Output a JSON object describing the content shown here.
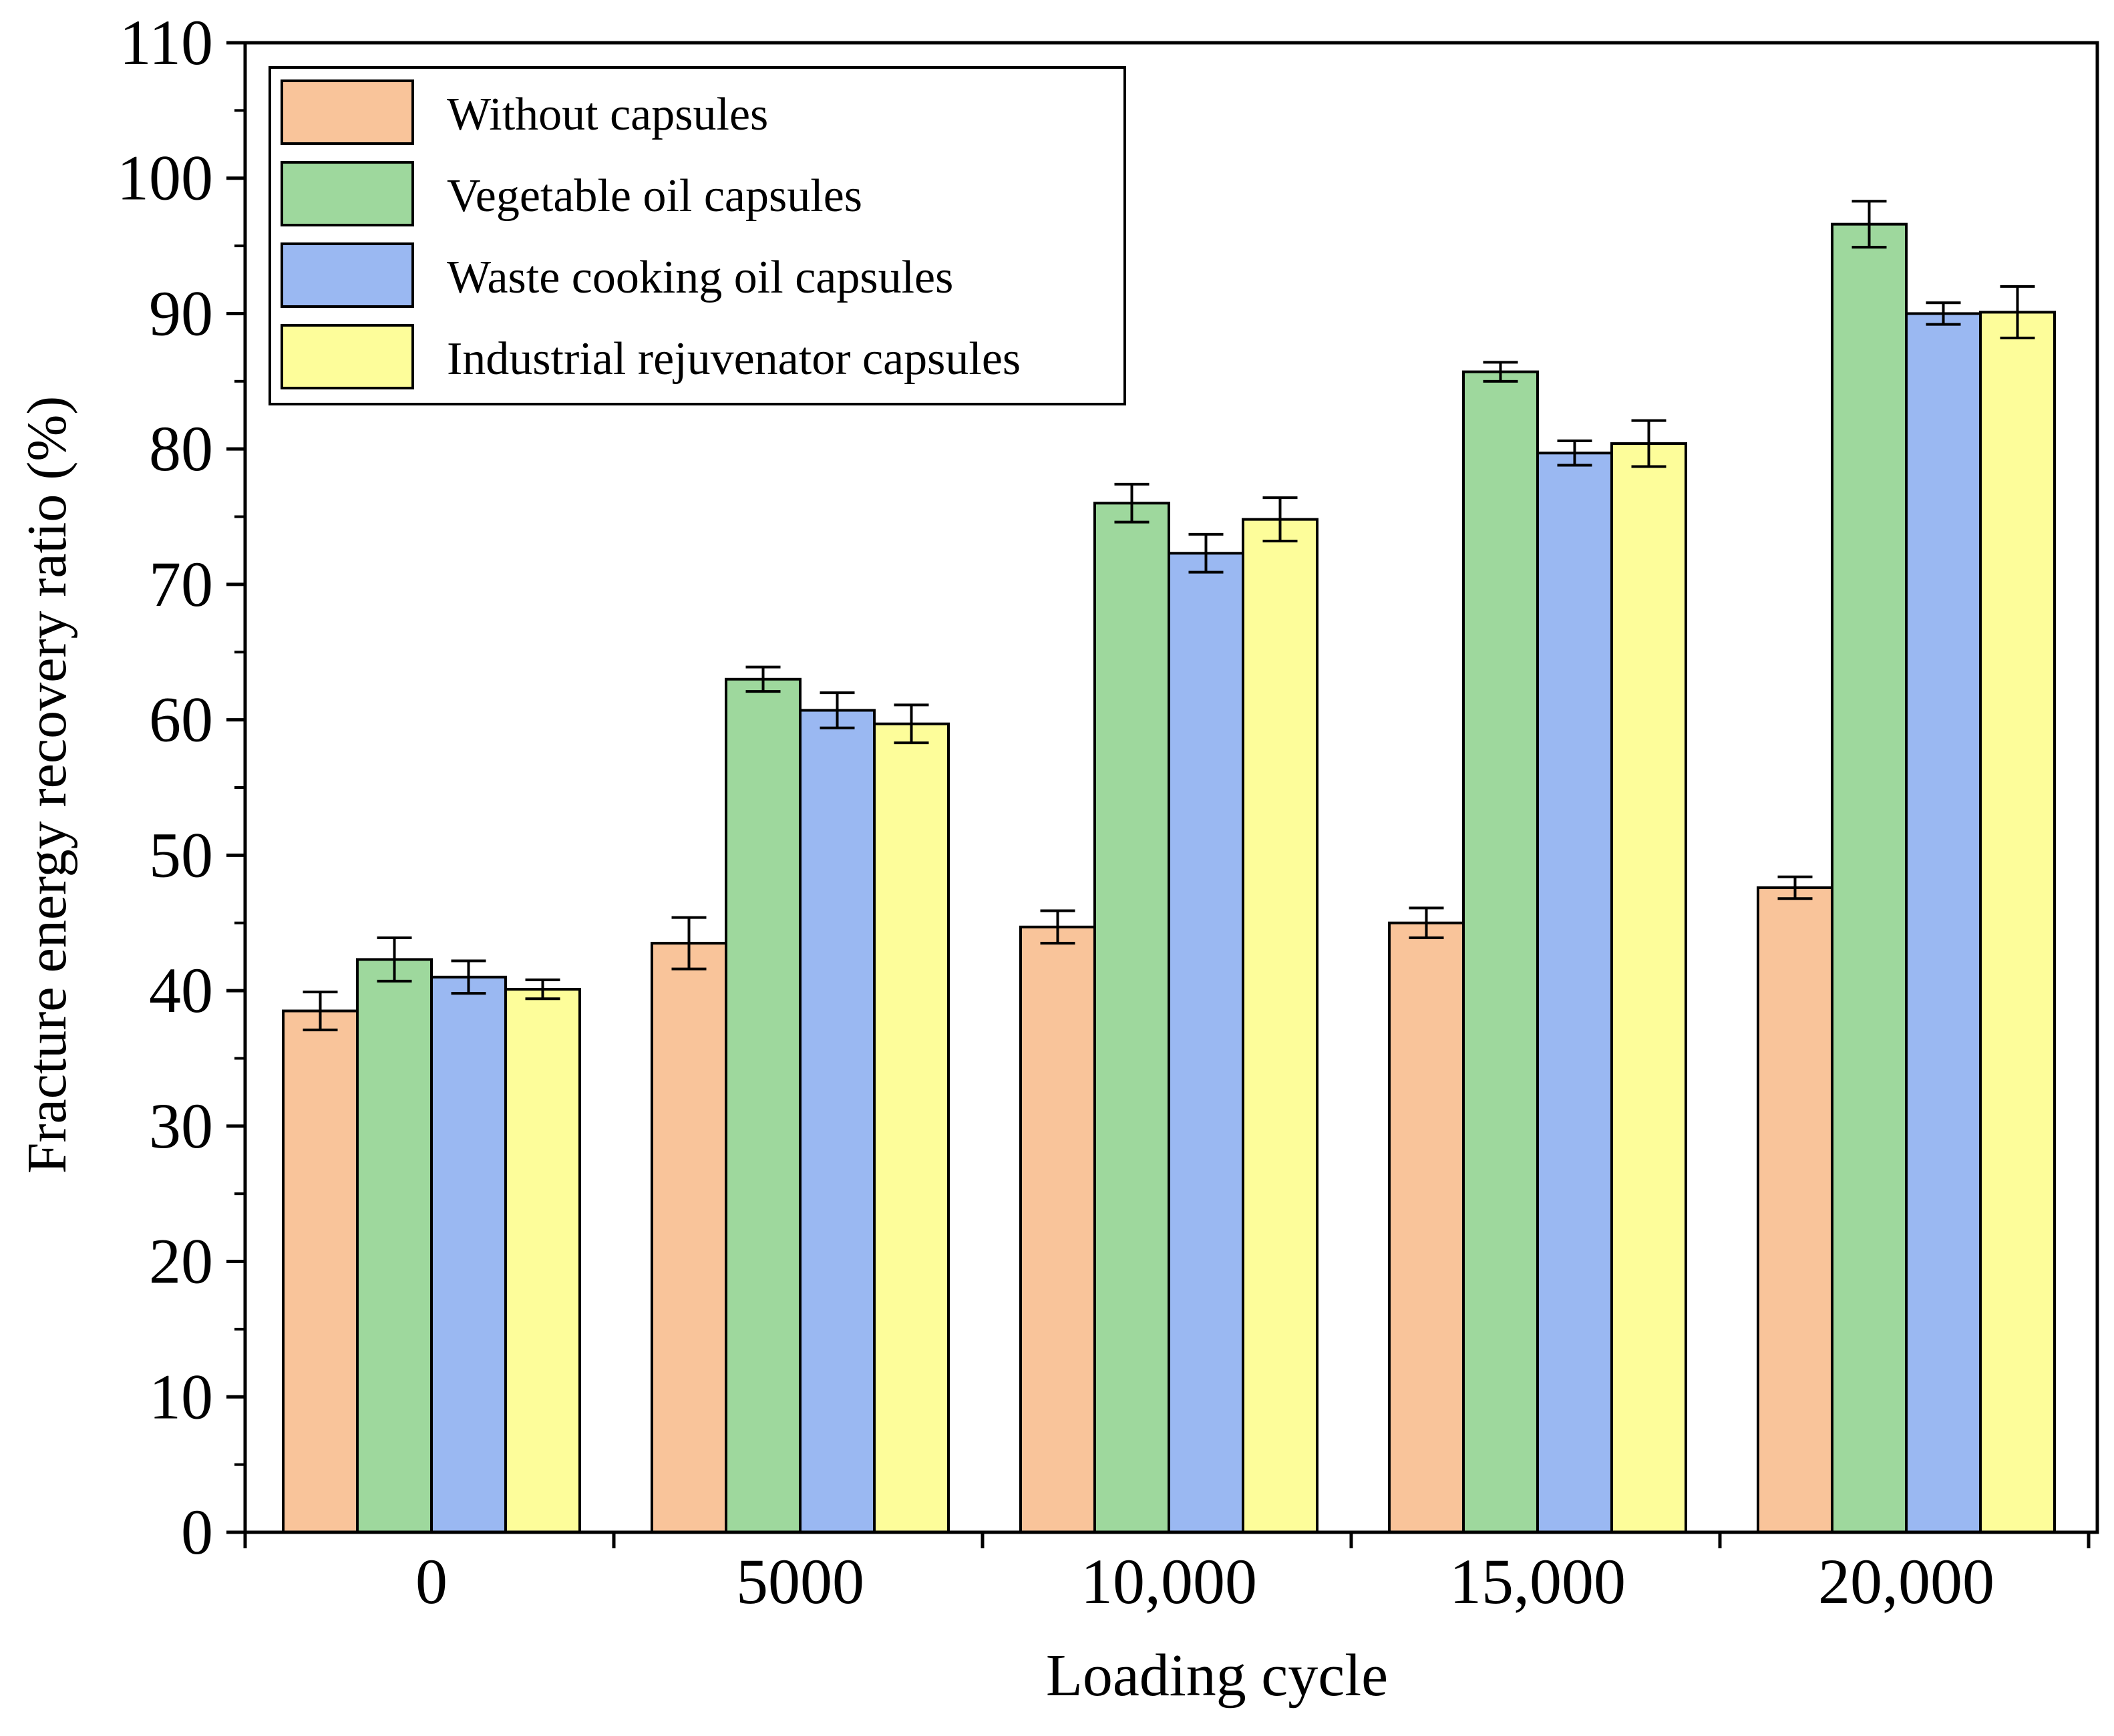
{
  "chart_data": {
    "type": "bar",
    "title": "",
    "xlabel": "Loading cycle",
    "ylabel": "Fracture energy recovery ratio (%)",
    "ylim": [
      0,
      110
    ],
    "yticks": [
      0,
      10,
      20,
      30,
      40,
      50,
      60,
      70,
      80,
      90,
      100,
      110
    ],
    "categories": [
      "0",
      "5000",
      "10,000",
      "15,000",
      "20,000"
    ],
    "legend_position": "top-left",
    "series": [
      {
        "name": "Without capsules",
        "color": "#F9C49A",
        "values": [
          38.5,
          43.5,
          44.7,
          45.0,
          47.6
        ],
        "errors": [
          1.4,
          1.9,
          1.2,
          1.1,
          0.8
        ]
      },
      {
        "name": "Vegetable oil capsules",
        "color": "#9ED89D",
        "values": [
          42.3,
          63.0,
          76.0,
          85.7,
          96.6
        ],
        "errors": [
          1.6,
          0.9,
          1.4,
          0.7,
          1.7
        ]
      },
      {
        "name": "Waste cooking oil capsules",
        "color": "#9AB8F2",
        "values": [
          41.0,
          60.7,
          72.3,
          79.7,
          90.0
        ],
        "errors": [
          1.2,
          1.3,
          1.4,
          0.9,
          0.8
        ]
      },
      {
        "name": "Industrial rejuvenator capsules",
        "color": "#FDFD9A",
        "values": [
          40.1,
          59.7,
          74.8,
          80.4,
          90.1
        ],
        "errors": [
          0.7,
          1.4,
          1.6,
          1.7,
          1.9
        ]
      }
    ]
  }
}
